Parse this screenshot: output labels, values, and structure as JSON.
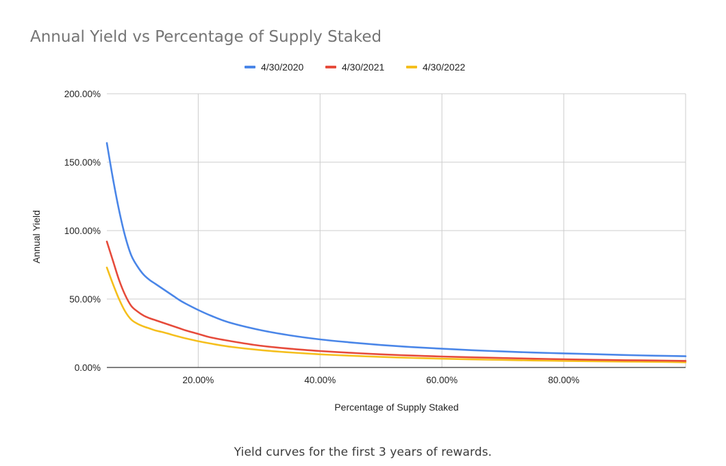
{
  "caption": "Yield curves for the first 3 years of rewards.",
  "chart_data": {
    "type": "line",
    "title": "Annual Yield vs Percentage of Supply Staked",
    "xlabel": "Percentage of Supply Staked",
    "ylabel": "Annual Yield",
    "xlim": [
      5,
      100
    ],
    "ylim": [
      0,
      200
    ],
    "x_ticks": [
      20,
      40,
      60,
      80
    ],
    "x_tick_labels": [
      "20.00%",
      "40.00%",
      "60.00%",
      "80.00%"
    ],
    "y_ticks": [
      0,
      50,
      100,
      150,
      200
    ],
    "y_tick_labels": [
      "0.00%",
      "50.00%",
      "100.00%",
      "150.00%",
      "200.00%"
    ],
    "grid": true,
    "legend_position": "top",
    "x": [
      5,
      6,
      7,
      8,
      9,
      10,
      11,
      12,
      13,
      14,
      15,
      16,
      17,
      18,
      20,
      22,
      25,
      30,
      35,
      40,
      45,
      50,
      55,
      60,
      65,
      70,
      75,
      80,
      85,
      90,
      95,
      100
    ],
    "series": [
      {
        "name": "4/30/2020",
        "color": "#4a86e8",
        "values": [
          164,
          138,
          115,
          96,
          82,
          74,
          68,
          64,
          61,
          58,
          55,
          52,
          49,
          46.5,
          42,
          38,
          33,
          27.5,
          23.5,
          20.5,
          18.3,
          16.4,
          14.9,
          13.7,
          12.6,
          11.7,
          10.9,
          10.3,
          9.7,
          9.1,
          8.6,
          8.2
        ]
      },
      {
        "name": "4/30/2021",
        "color": "#e64b3b",
        "values": [
          92,
          78,
          64,
          53,
          45,
          41,
          38,
          36,
          34.5,
          33,
          31.5,
          30,
          28.5,
          27,
          24.5,
          22,
          19.5,
          16,
          13.7,
          12,
          10.7,
          9.6,
          8.7,
          8,
          7.4,
          6.9,
          6.4,
          6,
          5.6,
          5.3,
          5.1,
          4.8
        ]
      },
      {
        "name": "4/30/2022",
        "color": "#f5bf1d",
        "values": [
          73,
          61,
          50,
          41,
          35,
          32,
          30,
          28.5,
          27,
          26,
          24.8,
          23.5,
          22.3,
          21.2,
          19.2,
          17.5,
          15.3,
          12.8,
          11,
          9.6,
          8.6,
          7.7,
          7,
          6.4,
          5.9,
          5.5,
          5.1,
          4.8,
          4.5,
          4.3,
          4.1,
          3.8
        ]
      }
    ]
  }
}
